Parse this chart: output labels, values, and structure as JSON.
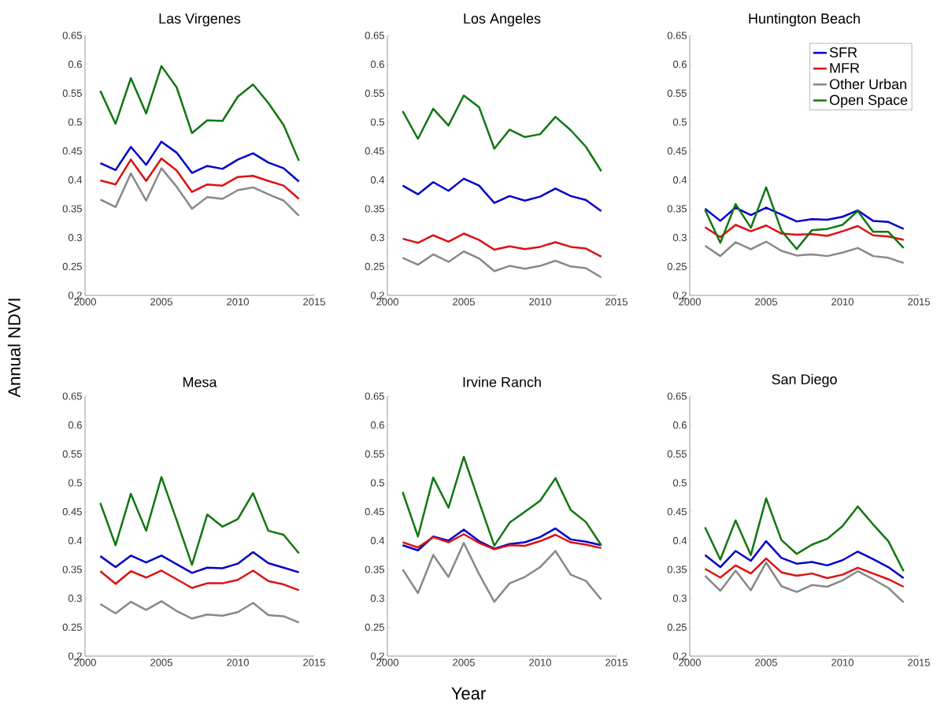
{
  "chart_data": [
    {
      "type": "line",
      "title": "Las Virgenes",
      "ylabel": "Annual NDVI",
      "x": [
        2001,
        2002,
        2003,
        2004,
        2005,
        2006,
        2007,
        2008,
        2009,
        2010,
        2011,
        2012,
        2013,
        2014
      ],
      "xlim": [
        2000,
        2015
      ],
      "xticks": [
        2000,
        2005,
        2010,
        2015
      ],
      "ylim": [
        0.2,
        0.65
      ],
      "yticks": [
        0.2,
        0.25,
        0.3,
        0.35,
        0.4,
        0.45,
        0.5,
        0.55,
        0.6,
        0.65
      ],
      "series": [
        {
          "color": "#0000cc",
          "values": [
            0.429,
            0.417,
            0.457,
            0.426,
            0.466,
            0.447,
            0.412,
            0.424,
            0.419,
            0.435,
            0.446,
            0.43,
            0.42,
            0.397
          ]
        },
        {
          "color": "#dd1111",
          "values": [
            0.399,
            0.392,
            0.435,
            0.398,
            0.437,
            0.416,
            0.379,
            0.392,
            0.39,
            0.405,
            0.407,
            0.398,
            0.39,
            0.367
          ]
        },
        {
          "color": "#888888",
          "values": [
            0.366,
            0.353,
            0.411,
            0.364,
            0.42,
            0.388,
            0.35,
            0.37,
            0.367,
            0.382,
            0.387,
            0.375,
            0.364,
            0.338
          ]
        },
        {
          "color": "#117711",
          "values": [
            0.554,
            0.497,
            0.576,
            0.515,
            0.597,
            0.56,
            0.481,
            0.503,
            0.502,
            0.544,
            0.565,
            0.533,
            0.495,
            0.433
          ]
        }
      ]
    },
    {
      "type": "line",
      "title": "Los Angeles",
      "x": [
        2001,
        2002,
        2003,
        2004,
        2005,
        2006,
        2007,
        2008,
        2009,
        2010,
        2011,
        2012,
        2013,
        2014
      ],
      "xlim": [
        2000,
        2015
      ],
      "xticks": [
        2000,
        2005,
        2010,
        2015
      ],
      "ylim": [
        0.2,
        0.65
      ],
      "yticks": [
        0.2,
        0.25,
        0.3,
        0.35,
        0.4,
        0.45,
        0.5,
        0.55,
        0.6,
        0.65
      ],
      "series": [
        {
          "color": "#0000cc",
          "values": [
            0.39,
            0.375,
            0.396,
            0.381,
            0.402,
            0.39,
            0.36,
            0.372,
            0.364,
            0.371,
            0.385,
            0.372,
            0.365,
            0.346
          ]
        },
        {
          "color": "#dd1111",
          "values": [
            0.298,
            0.291,
            0.304,
            0.293,
            0.307,
            0.296,
            0.279,
            0.285,
            0.28,
            0.284,
            0.292,
            0.284,
            0.281,
            0.267
          ]
        },
        {
          "color": "#888888",
          "values": [
            0.265,
            0.253,
            0.271,
            0.258,
            0.276,
            0.264,
            0.242,
            0.251,
            0.246,
            0.251,
            0.26,
            0.25,
            0.247,
            0.231
          ]
        },
        {
          "color": "#117711",
          "values": [
            0.519,
            0.471,
            0.523,
            0.494,
            0.546,
            0.526,
            0.454,
            0.487,
            0.474,
            0.479,
            0.509,
            0.486,
            0.457,
            0.415
          ]
        }
      ]
    },
    {
      "type": "line",
      "title": "Huntington Beach",
      "legend": "top right",
      "x": [
        2001,
        2002,
        2003,
        2004,
        2005,
        2006,
        2007,
        2008,
        2009,
        2010,
        2011,
        2012,
        2013,
        2014
      ],
      "xlim": [
        2000,
        2015
      ],
      "xticks": [
        2000,
        2005,
        2010,
        2015
      ],
      "ylim": [
        0.2,
        0.65
      ],
      "yticks": [
        0.2,
        0.25,
        0.3,
        0.35,
        0.4,
        0.45,
        0.5,
        0.55,
        0.6,
        0.65
      ],
      "series": [
        {
          "name": "SFR",
          "color": "#0000cc",
          "values": [
            0.35,
            0.329,
            0.352,
            0.339,
            0.352,
            0.34,
            0.328,
            0.332,
            0.331,
            0.336,
            0.347,
            0.329,
            0.327,
            0.315
          ]
        },
        {
          "name": "MFR",
          "color": "#dd1111",
          "values": [
            0.318,
            0.301,
            0.322,
            0.311,
            0.321,
            0.307,
            0.305,
            0.306,
            0.303,
            0.311,
            0.32,
            0.304,
            0.302,
            0.296
          ]
        },
        {
          "name": "Other Urban",
          "color": "#888888",
          "values": [
            0.286,
            0.268,
            0.292,
            0.28,
            0.293,
            0.277,
            0.269,
            0.271,
            0.268,
            0.274,
            0.282,
            0.268,
            0.265,
            0.256
          ]
        },
        {
          "name": "Open Space",
          "color": "#117711",
          "values": [
            0.348,
            0.291,
            0.358,
            0.317,
            0.387,
            0.312,
            0.28,
            0.313,
            0.315,
            0.322,
            0.346,
            0.31,
            0.31,
            0.282
          ]
        }
      ]
    },
    {
      "type": "line",
      "title": "Mesa",
      "x": [
        2001,
        2002,
        2003,
        2004,
        2005,
        2006,
        2007,
        2008,
        2009,
        2010,
        2011,
        2012,
        2013,
        2014
      ],
      "xlim": [
        2000,
        2015
      ],
      "xticks": [
        2000,
        2005,
        2010,
        2015
      ],
      "ylim": [
        0.2,
        0.65
      ],
      "yticks": [
        0.2,
        0.25,
        0.3,
        0.35,
        0.4,
        0.45,
        0.5,
        0.55,
        0.6,
        0.65
      ],
      "series": [
        {
          "color": "#0000cc",
          "values": [
            0.373,
            0.354,
            0.374,
            0.362,
            0.374,
            0.359,
            0.344,
            0.353,
            0.352,
            0.36,
            0.38,
            0.361,
            0.353,
            0.345
          ]
        },
        {
          "color": "#dd1111",
          "values": [
            0.347,
            0.325,
            0.347,
            0.336,
            0.348,
            0.333,
            0.318,
            0.326,
            0.326,
            0.332,
            0.348,
            0.33,
            0.324,
            0.314
          ]
        },
        {
          "color": "#888888",
          "values": [
            0.29,
            0.274,
            0.294,
            0.28,
            0.295,
            0.278,
            0.265,
            0.272,
            0.27,
            0.276,
            0.292,
            0.271,
            0.269,
            0.258
          ]
        },
        {
          "color": "#117711",
          "values": [
            0.465,
            0.392,
            0.481,
            0.417,
            0.51,
            0.435,
            0.358,
            0.445,
            0.424,
            0.437,
            0.482,
            0.417,
            0.41,
            0.378
          ]
        }
      ]
    },
    {
      "type": "line",
      "title": "Irvine Ranch",
      "xlabel": "Year",
      "x": [
        2001,
        2002,
        2003,
        2004,
        2005,
        2006,
        2007,
        2008,
        2009,
        2010,
        2011,
        2012,
        2013,
        2014
      ],
      "xlim": [
        2000,
        2015
      ],
      "xticks": [
        2000,
        2005,
        2010,
        2015
      ],
      "ylim": [
        0.2,
        0.65
      ],
      "yticks": [
        0.2,
        0.25,
        0.3,
        0.35,
        0.4,
        0.45,
        0.5,
        0.55,
        0.6,
        0.65
      ],
      "series": [
        {
          "color": "#0000cc",
          "values": [
            0.392,
            0.383,
            0.407,
            0.4,
            0.419,
            0.399,
            0.386,
            0.394,
            0.397,
            0.406,
            0.421,
            0.402,
            0.398,
            0.392
          ]
        },
        {
          "color": "#dd1111",
          "values": [
            0.397,
            0.388,
            0.406,
            0.397,
            0.411,
            0.396,
            0.385,
            0.392,
            0.391,
            0.399,
            0.41,
            0.397,
            0.393,
            0.387
          ]
        },
        {
          "color": "#888888",
          "values": [
            0.35,
            0.309,
            0.375,
            0.337,
            0.396,
            0.342,
            0.294,
            0.326,
            0.337,
            0.354,
            0.382,
            0.341,
            0.33,
            0.298
          ]
        },
        {
          "color": "#117711",
          "values": [
            0.484,
            0.407,
            0.509,
            0.457,
            0.545,
            0.467,
            0.391,
            0.431,
            0.45,
            0.469,
            0.508,
            0.453,
            0.432,
            0.392
          ]
        }
      ]
    },
    {
      "type": "line",
      "title": "San Diego",
      "x": [
        2001,
        2002,
        2003,
        2004,
        2005,
        2006,
        2007,
        2008,
        2009,
        2010,
        2011,
        2012,
        2013,
        2014
      ],
      "xlim": [
        2000,
        2015
      ],
      "xticks": [
        2000,
        2005,
        2010,
        2015
      ],
      "ylim": [
        0.2,
        0.65
      ],
      "yticks": [
        0.2,
        0.25,
        0.3,
        0.35,
        0.4,
        0.45,
        0.5,
        0.55,
        0.6,
        0.65
      ],
      "series": [
        {
          "color": "#0000cc",
          "values": [
            0.375,
            0.354,
            0.382,
            0.365,
            0.399,
            0.37,
            0.36,
            0.363,
            0.357,
            0.366,
            0.381,
            0.368,
            0.354,
            0.335
          ]
        },
        {
          "color": "#dd1111",
          "values": [
            0.351,
            0.336,
            0.357,
            0.343,
            0.369,
            0.345,
            0.339,
            0.343,
            0.335,
            0.341,
            0.353,
            0.343,
            0.333,
            0.32
          ]
        },
        {
          "color": "#888888",
          "values": [
            0.339,
            0.313,
            0.348,
            0.314,
            0.362,
            0.321,
            0.311,
            0.323,
            0.32,
            0.331,
            0.347,
            0.333,
            0.318,
            0.293
          ]
        },
        {
          "color": "#117711",
          "values": [
            0.423,
            0.367,
            0.435,
            0.375,
            0.473,
            0.401,
            0.377,
            0.393,
            0.403,
            0.425,
            0.459,
            0.428,
            0.399,
            0.347
          ]
        }
      ]
    }
  ]
}
